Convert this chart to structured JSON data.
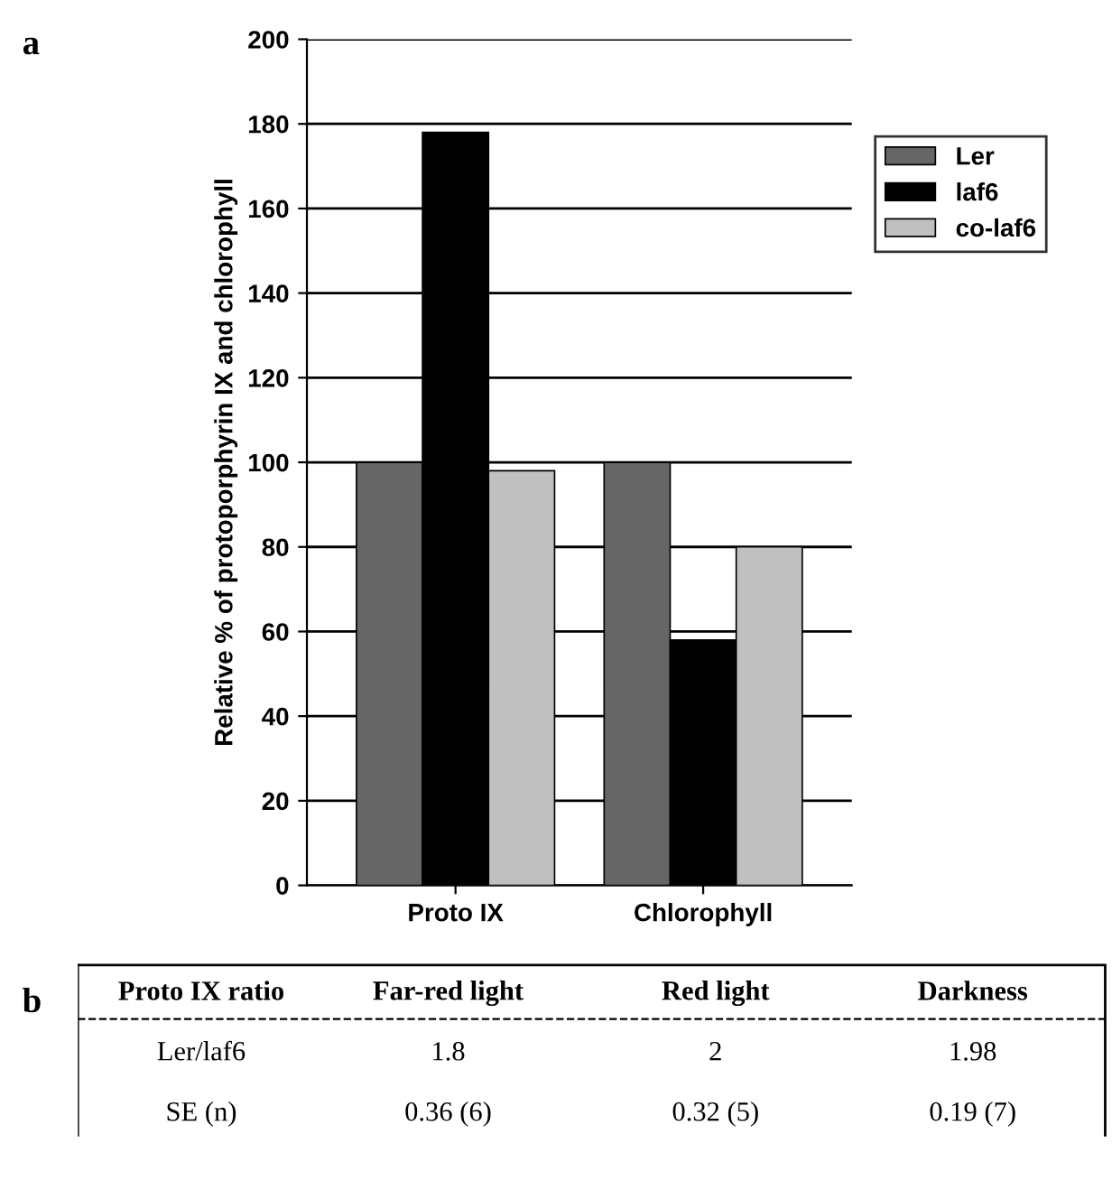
{
  "chart_data": [
    {
      "type": "bar",
      "title": "a",
      "ylabel": "Relative % of protoporphyrin IX and chlorophyll",
      "categories": [
        "Proto IX",
        "Chlorophyll"
      ],
      "series": [
        {
          "name": "Ler",
          "color": "#666666",
          "values": [
            100,
            100
          ]
        },
        {
          "name": "laf6",
          "color": "#000000",
          "values": [
            178,
            58
          ]
        },
        {
          "name": "co-laf6",
          "color": "#c0c0c0",
          "values": [
            98,
            80
          ]
        }
      ],
      "ylim": [
        0,
        200
      ],
      "yticks": [
        0,
        20,
        40,
        60,
        80,
        100,
        120,
        140,
        160,
        180,
        200
      ],
      "grid": "y",
      "legend": "top right"
    },
    {
      "type": "other",
      "title": "b",
      "annotations": [
        "Proto IX ratio",
        "Far-red light",
        "Red light",
        "Darkness",
        "Ler/laf6",
        "1.8",
        "2",
        "1.98",
        "SE (n)",
        "0.36 (6)",
        "0.32 (5)",
        "0.19 (7)"
      ]
    }
  ]
}
